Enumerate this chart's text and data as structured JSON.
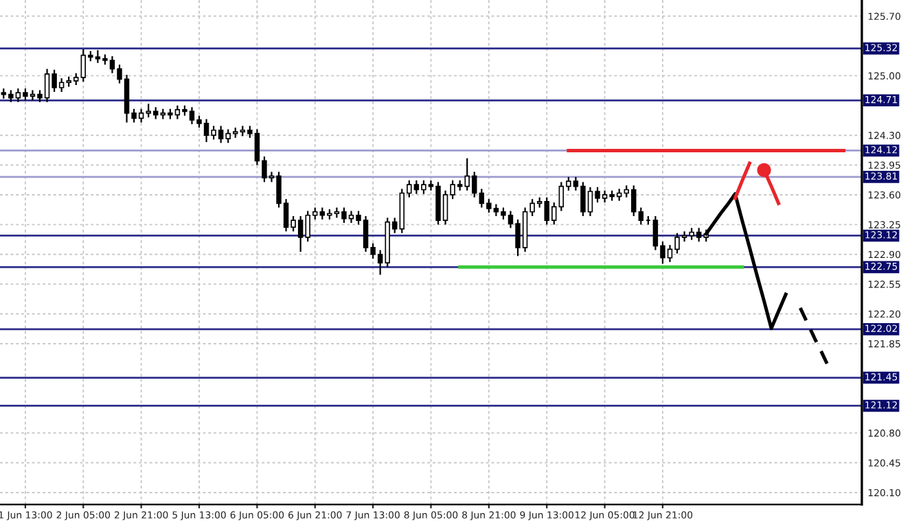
{
  "chart_data": {
    "type": "candlestick",
    "color": "#000000",
    "categories": [
      null,
      null,
      null,
      "1 Jun 13:00",
      null,
      null,
      null,
      null,
      null,
      null,
      null,
      "2 Jun 05:00",
      null,
      null,
      null,
      null,
      null,
      null,
      null,
      "2 Jun 21:00",
      null,
      null,
      null,
      null,
      null,
      null,
      null,
      "5 Jun 13:00",
      null,
      null,
      null,
      null,
      null,
      null,
      null,
      "6 Jun 05:00",
      null,
      null,
      null,
      null,
      null,
      null,
      null,
      "6 Jun 21:00",
      null,
      null,
      null,
      null,
      null,
      null,
      null,
      "7 Jun 13:00",
      null,
      null,
      null,
      null,
      null,
      null,
      null,
      "8 Jun 05:00",
      null,
      null,
      null,
      null,
      null,
      null,
      null,
      "8 Jun 21:00",
      null,
      null,
      null,
      null,
      null,
      null,
      null,
      "9 Jun 13:00",
      null,
      null,
      null,
      null,
      null,
      null,
      null,
      "12 Jun 05:00",
      null,
      null,
      null,
      null,
      null,
      null,
      null,
      "12 Jun 21:00",
      null,
      null,
      null,
      null,
      null,
      null,
      null,
      null,
      null,
      null,
      null,
      null,
      null,
      null,
      null,
      null,
      null,
      null,
      null,
      null,
      null,
      null,
      null,
      null,
      null,
      null,
      null
    ],
    "ohlc": [
      [
        124.8,
        124.85,
        124.73,
        124.78
      ],
      [
        124.78,
        124.83,
        124.69,
        124.74
      ],
      [
        124.74,
        124.85,
        124.69,
        124.8
      ],
      [
        124.8,
        124.85,
        124.71,
        124.76
      ],
      [
        124.76,
        124.83,
        124.71,
        124.78
      ],
      [
        124.78,
        124.83,
        124.69,
        124.74
      ],
      [
        124.74,
        125.08,
        124.69,
        125.02
      ],
      [
        125.02,
        125.07,
        124.81,
        124.86
      ],
      [
        124.86,
        124.97,
        124.81,
        124.92
      ],
      [
        124.92,
        124.99,
        124.87,
        124.94
      ],
      [
        124.94,
        125.03,
        124.89,
        124.98
      ],
      [
        124.98,
        125.31,
        124.93,
        125.24
      ],
      [
        125.24,
        125.29,
        125.17,
        125.22
      ],
      [
        125.22,
        125.3,
        125.15,
        125.2
      ],
      [
        125.2,
        125.25,
        125.13,
        125.18
      ],
      [
        125.18,
        125.23,
        125.03,
        125.08
      ],
      [
        125.08,
        125.13,
        124.91,
        124.96
      ],
      [
        124.96,
        125.01,
        124.45,
        124.56
      ],
      [
        124.56,
        124.61,
        124.45,
        124.5
      ],
      [
        124.5,
        124.61,
        124.45,
        124.56
      ],
      [
        124.56,
        124.67,
        124.51,
        124.58
      ],
      [
        124.58,
        124.63,
        124.49,
        124.54
      ],
      [
        124.54,
        124.61,
        124.49,
        124.56
      ],
      [
        124.56,
        124.61,
        124.49,
        124.54
      ],
      [
        124.54,
        124.65,
        124.49,
        124.6
      ],
      [
        124.6,
        124.65,
        124.53,
        124.58
      ],
      [
        124.58,
        124.63,
        124.43,
        124.48
      ],
      [
        124.48,
        124.53,
        124.39,
        124.44
      ],
      [
        124.44,
        124.49,
        124.22,
        124.3
      ],
      [
        124.3,
        124.41,
        124.25,
        124.36
      ],
      [
        124.36,
        124.41,
        124.21,
        124.26
      ],
      [
        124.26,
        124.37,
        124.21,
        124.32
      ],
      [
        124.32,
        124.39,
        124.27,
        124.34
      ],
      [
        124.34,
        124.41,
        124.29,
        124.36
      ],
      [
        124.36,
        124.41,
        124.27,
        124.32
      ],
      [
        124.32,
        124.37,
        123.95,
        124.0
      ],
      [
        124.0,
        124.05,
        123.75,
        123.8
      ],
      [
        123.8,
        123.87,
        123.75,
        123.82
      ],
      [
        123.82,
        123.87,
        123.45,
        123.5
      ],
      [
        123.5,
        123.55,
        123.17,
        123.22
      ],
      [
        123.22,
        123.35,
        123.17,
        123.3
      ],
      [
        123.3,
        123.35,
        122.93,
        123.1
      ],
      [
        123.1,
        123.41,
        123.05,
        123.36
      ],
      [
        123.36,
        123.45,
        123.31,
        123.4
      ],
      [
        123.4,
        123.45,
        123.31,
        123.36
      ],
      [
        123.36,
        123.43,
        123.31,
        123.38
      ],
      [
        123.38,
        123.45,
        123.33,
        123.4
      ],
      [
        123.4,
        123.45,
        123.27,
        123.32
      ],
      [
        123.32,
        123.41,
        123.27,
        123.36
      ],
      [
        123.36,
        123.41,
        123.25,
        123.3
      ],
      [
        123.3,
        123.35,
        122.93,
        122.98
      ],
      [
        122.98,
        123.03,
        122.85,
        122.9
      ],
      [
        122.9,
        122.95,
        122.66,
        122.8
      ],
      [
        122.8,
        123.33,
        122.75,
        123.28
      ],
      [
        123.28,
        123.33,
        123.15,
        123.2
      ],
      [
        123.2,
        123.67,
        123.15,
        123.62
      ],
      [
        123.62,
        123.77,
        123.57,
        123.72
      ],
      [
        123.72,
        123.77,
        123.61,
        123.66
      ],
      [
        123.66,
        123.77,
        123.61,
        123.72
      ],
      [
        123.72,
        123.77,
        123.65,
        123.7
      ],
      [
        123.7,
        123.75,
        123.25,
        123.3
      ],
      [
        123.3,
        123.65,
        123.25,
        123.6
      ],
      [
        123.6,
        123.77,
        123.55,
        123.72
      ],
      [
        123.72,
        123.77,
        123.65,
        123.7
      ],
      [
        123.7,
        124.03,
        123.65,
        123.82
      ],
      [
        123.82,
        123.87,
        123.57,
        123.62
      ],
      [
        123.62,
        123.67,
        123.45,
        123.5
      ],
      [
        123.5,
        123.55,
        123.39,
        123.44
      ],
      [
        123.44,
        123.49,
        123.35,
        123.4
      ],
      [
        123.4,
        123.45,
        123.31,
        123.36
      ],
      [
        123.36,
        123.41,
        123.21,
        123.26
      ],
      [
        123.26,
        123.31,
        122.88,
        122.98
      ],
      [
        122.98,
        123.45,
        122.93,
        123.4
      ],
      [
        123.4,
        123.55,
        123.35,
        123.5
      ],
      [
        123.5,
        123.57,
        123.45,
        123.52
      ],
      [
        123.52,
        123.57,
        123.25,
        123.3
      ],
      [
        123.3,
        123.51,
        123.25,
        123.46
      ],
      [
        123.46,
        123.75,
        123.41,
        123.7
      ],
      [
        123.7,
        123.81,
        123.65,
        123.76
      ],
      [
        123.76,
        123.81,
        123.65,
        123.7
      ],
      [
        123.7,
        123.75,
        123.35,
        123.4
      ],
      [
        123.4,
        123.69,
        123.35,
        123.64
      ],
      [
        123.64,
        123.69,
        123.51,
        123.56
      ],
      [
        123.56,
        123.65,
        123.51,
        123.6
      ],
      [
        123.6,
        123.65,
        123.53,
        123.58
      ],
      [
        123.58,
        123.67,
        123.53,
        123.62
      ],
      [
        123.62,
        123.71,
        123.57,
        123.66
      ],
      [
        123.66,
        123.71,
        123.35,
        123.4
      ],
      [
        123.4,
        123.45,
        123.25,
        123.3
      ],
      [
        123.3,
        123.35,
        123.25,
        123.3
      ],
      [
        123.3,
        123.35,
        122.95,
        123.0
      ],
      [
        123.0,
        123.05,
        122.79,
        122.86
      ],
      [
        122.86,
        123.01,
        122.81,
        122.96
      ],
      [
        122.96,
        123.15,
        122.91,
        123.1
      ],
      [
        123.1,
        123.17,
        123.05,
        123.12
      ],
      [
        123.12,
        123.21,
        123.07,
        123.16
      ],
      [
        123.16,
        123.21,
        123.05,
        123.1
      ],
      [
        123.1,
        123.19,
        123.05,
        123.14
      ],
      null,
      null,
      null,
      null,
      null,
      null,
      null,
      null,
      null,
      null,
      null,
      null,
      null,
      null,
      null,
      null,
      null,
      null,
      null,
      null,
      null
    ],
    "series": [
      {
        "type": "line",
        "color": "#e8262b",
        "line_style": "solid",
        "values": [
          null,
          null,
          null,
          null,
          null,
          null,
          null,
          null,
          null,
          null,
          null,
          null,
          null,
          null,
          null,
          null,
          null,
          null,
          null,
          null,
          null,
          null,
          null,
          null,
          null,
          null,
          null,
          null,
          null,
          null,
          null,
          null,
          null,
          null,
          null,
          null,
          null,
          null,
          null,
          null,
          null,
          null,
          null,
          null,
          null,
          null,
          null,
          null,
          null,
          null,
          null,
          null,
          null,
          null,
          null,
          null,
          null,
          null,
          null,
          null,
          null,
          null,
          null,
          null,
          null,
          null,
          null,
          null,
          null,
          null,
          null,
          null,
          null,
          null,
          null,
          null,
          null,
          null,
          124.12,
          124.12,
          124.12,
          124.12,
          124.12,
          124.12,
          124.12,
          124.12,
          124.12,
          124.12,
          124.12,
          124.12,
          124.12,
          124.12,
          124.12,
          124.12,
          124.12,
          124.12,
          124.12,
          124.12,
          124.12,
          124.12,
          124.12,
          124.12,
          124.12,
          124.12,
          124.12,
          124.12,
          124.12,
          124.12,
          124.12,
          124.12,
          124.12,
          124.12,
          124.12,
          124.12,
          124.12,
          124.12,
          124.12,
          null,
          null
        ]
      },
      {
        "type": "line",
        "color": "#3cc83c",
        "line_style": "solid",
        "values": [
          null,
          null,
          null,
          null,
          null,
          null,
          null,
          null,
          null,
          null,
          null,
          null,
          null,
          null,
          null,
          null,
          null,
          null,
          null,
          null,
          null,
          null,
          null,
          null,
          null,
          null,
          null,
          null,
          null,
          null,
          null,
          null,
          null,
          null,
          null,
          null,
          null,
          null,
          null,
          null,
          null,
          null,
          null,
          null,
          null,
          null,
          null,
          null,
          null,
          null,
          null,
          null,
          null,
          null,
          null,
          null,
          null,
          null,
          null,
          null,
          null,
          null,
          null,
          122.75,
          122.75,
          122.75,
          122.75,
          122.75,
          122.75,
          122.75,
          122.75,
          122.75,
          122.75,
          122.75,
          122.75,
          122.75,
          122.75,
          122.75,
          122.75,
          122.75,
          122.75,
          122.75,
          122.75,
          122.75,
          122.75,
          122.75,
          122.75,
          122.75,
          122.75,
          122.75,
          122.75,
          122.75,
          122.75,
          122.75,
          122.75,
          122.75,
          122.75,
          122.75,
          122.75,
          122.75,
          122.75,
          122.75,
          122.75,
          null,
          null,
          null,
          null,
          null,
          null,
          null,
          null,
          null,
          null,
          null,
          null,
          null,
          null,
          null,
          null
        ]
      },
      {
        "type": "line",
        "color": "#000000",
        "line_style": "solid",
        "values": [
          null,
          null,
          null,
          null,
          null,
          null,
          null,
          null,
          null,
          null,
          null,
          null,
          null,
          null,
          null,
          null,
          null,
          null,
          null,
          null,
          null,
          null,
          null,
          null,
          null,
          null,
          null,
          null,
          null,
          null,
          null,
          null,
          null,
          null,
          null,
          null,
          null,
          null,
          null,
          null,
          null,
          null,
          null,
          null,
          null,
          null,
          null,
          null,
          null,
          null,
          null,
          null,
          null,
          null,
          null,
          null,
          null,
          null,
          null,
          null,
          null,
          null,
          null,
          null,
          null,
          null,
          null,
          null,
          null,
          null,
          null,
          null,
          null,
          null,
          null,
          null,
          null,
          null,
          null,
          null,
          null,
          null,
          null,
          null,
          null,
          null,
          null,
          null,
          null,
          null,
          null,
          null,
          null,
          null,
          null,
          null,
          null,
          123.14,
          123.26,
          123.38,
          123.49,
          123.61,
          123.29,
          122.98,
          122.66,
          122.35,
          122.03,
          122.23,
          122.43,
          null,
          null,
          null,
          null,
          null,
          null,
          null,
          null,
          null,
          null
        ]
      },
      {
        "type": "line",
        "color": "#000000",
        "line_style": "dashed",
        "values": [
          null,
          null,
          null,
          null,
          null,
          null,
          null,
          null,
          null,
          null,
          null,
          null,
          null,
          null,
          null,
          null,
          null,
          null,
          null,
          null,
          null,
          null,
          null,
          null,
          null,
          null,
          null,
          null,
          null,
          null,
          null,
          null,
          null,
          null,
          null,
          null,
          null,
          null,
          null,
          null,
          null,
          null,
          null,
          null,
          null,
          null,
          null,
          null,
          null,
          null,
          null,
          null,
          null,
          null,
          null,
          null,
          null,
          null,
          null,
          null,
          null,
          null,
          null,
          null,
          null,
          null,
          null,
          null,
          null,
          null,
          null,
          null,
          null,
          null,
          null,
          null,
          null,
          null,
          null,
          null,
          null,
          null,
          null,
          null,
          null,
          null,
          null,
          null,
          null,
          null,
          null,
          null,
          null,
          null,
          null,
          null,
          null,
          null,
          null,
          null,
          null,
          null,
          null,
          null,
          null,
          null,
          null,
          null,
          null,
          null,
          122.27,
          122.09,
          121.91,
          121.74,
          121.56,
          null,
          null,
          null,
          null
        ]
      },
      {
        "type": "line",
        "color": "#e8262b",
        "line_style": "solid",
        "values": [
          null,
          null,
          null,
          null,
          null,
          null,
          null,
          null,
          null,
          null,
          null,
          null,
          null,
          null,
          null,
          null,
          null,
          null,
          null,
          null,
          null,
          null,
          null,
          null,
          null,
          null,
          null,
          null,
          null,
          null,
          null,
          null,
          null,
          null,
          null,
          null,
          null,
          null,
          null,
          null,
          null,
          null,
          null,
          null,
          null,
          null,
          null,
          null,
          null,
          null,
          null,
          null,
          null,
          null,
          null,
          null,
          null,
          null,
          null,
          null,
          null,
          null,
          null,
          null,
          null,
          null,
          null,
          null,
          null,
          null,
          null,
          null,
          null,
          null,
          null,
          null,
          null,
          null,
          null,
          null,
          null,
          null,
          null,
          null,
          null,
          null,
          null,
          null,
          null,
          null,
          null,
          null,
          null,
          null,
          null,
          null,
          null,
          null,
          null,
          null,
          null,
          123.56,
          123.77,
          123.97,
          null,
          null,
          null,
          null,
          null,
          null,
          null,
          null,
          null,
          null,
          null,
          null,
          null,
          null,
          null
        ]
      },
      {
        "type": "line",
        "color": "#e8262b",
        "line_style": "solid",
        "values": [
          null,
          null,
          null,
          null,
          null,
          null,
          null,
          null,
          null,
          null,
          null,
          null,
          null,
          null,
          null,
          null,
          null,
          null,
          null,
          null,
          null,
          null,
          null,
          null,
          null,
          null,
          null,
          null,
          null,
          null,
          null,
          null,
          null,
          null,
          null,
          null,
          null,
          null,
          null,
          null,
          null,
          null,
          null,
          null,
          null,
          null,
          null,
          null,
          null,
          null,
          null,
          null,
          null,
          null,
          null,
          null,
          null,
          null,
          null,
          null,
          null,
          null,
          null,
          null,
          null,
          null,
          null,
          null,
          null,
          null,
          null,
          null,
          null,
          null,
          null,
          null,
          null,
          null,
          null,
          null,
          null,
          null,
          null,
          null,
          null,
          null,
          null,
          null,
          null,
          null,
          null,
          null,
          null,
          null,
          null,
          null,
          null,
          null,
          null,
          null,
          null,
          null,
          null,
          null,
          null,
          123.89,
          123.7,
          123.5,
          null,
          null,
          null,
          null,
          null,
          null,
          null,
          null,
          null,
          null,
          null
        ]
      },
      {
        "type": "scatter",
        "color": "#e8262b",
        "marker": "circle",
        "values": [
          null,
          null,
          null,
          null,
          null,
          null,
          null,
          null,
          null,
          null,
          null,
          null,
          null,
          null,
          null,
          null,
          null,
          null,
          null,
          null,
          null,
          null,
          null,
          null,
          null,
          null,
          null,
          null,
          null,
          null,
          null,
          null,
          null,
          null,
          null,
          null,
          null,
          null,
          null,
          null,
          null,
          null,
          null,
          null,
          null,
          null,
          null,
          null,
          null,
          null,
          null,
          null,
          null,
          null,
          null,
          null,
          null,
          null,
          null,
          null,
          null,
          null,
          null,
          null,
          null,
          null,
          null,
          null,
          null,
          null,
          null,
          null,
          null,
          null,
          null,
          null,
          null,
          null,
          null,
          null,
          null,
          null,
          null,
          null,
          null,
          null,
          null,
          null,
          null,
          null,
          null,
          null,
          null,
          null,
          null,
          null,
          null,
          null,
          null,
          null,
          null,
          null,
          null,
          null,
          null,
          123.89,
          null,
          null,
          null,
          null,
          null,
          null,
          null,
          null,
          null,
          null,
          null,
          null,
          null
        ]
      }
    ],
    "ref_lines": [
      {
        "axis": "y",
        "value": 125.32,
        "label": "125.32",
        "color": "#2e2e8c"
      },
      {
        "axis": "y",
        "value": 124.71,
        "label": "124.71",
        "color": "#2e2e8c"
      },
      {
        "axis": "y",
        "value": 124.12,
        "label": "124.12",
        "color": "#9c9ccf"
      },
      {
        "axis": "y",
        "value": 123.81,
        "label": "123.81",
        "color": "#9c9ccf"
      },
      {
        "axis": "y",
        "value": 123.12,
        "label": "123.12",
        "color": "#2e2e8c"
      },
      {
        "axis": "y",
        "value": 122.75,
        "label": "122.75",
        "color": "#2e2e8c"
      },
      {
        "axis": "y",
        "value": 122.02,
        "label": "122.02",
        "color": "#2e2e8c"
      },
      {
        "axis": "y",
        "value": 121.45,
        "label": "121.45",
        "color": "#2e2e8c"
      },
      {
        "axis": "y",
        "value": 121.12,
        "label": "121.12",
        "color": "#2e2e8c"
      }
    ],
    "ylim": [
      119.96,
      125.89
    ],
    "yticks": [
      {
        "value": 125.7,
        "label": "125.70"
      },
      {
        "value": 125.0,
        "label": "125.00"
      },
      {
        "value": 124.3,
        "label": "124.30"
      },
      {
        "value": 123.95,
        "label": "123.95"
      },
      {
        "value": 123.6,
        "label": "123.60"
      },
      {
        "value": 123.25,
        "label": "123.25"
      },
      {
        "value": 122.9,
        "label": "122.90"
      },
      {
        "value": 122.55,
        "label": "122.55"
      },
      {
        "value": 122.2,
        "label": "122.20"
      },
      {
        "value": 121.85,
        "label": "121.85"
      },
      {
        "value": 120.8,
        "label": "120.80"
      },
      {
        "value": 120.45,
        "label": "120.45"
      },
      {
        "value": 120.1,
        "label": "120.10"
      }
    ],
    "grid": true
  }
}
